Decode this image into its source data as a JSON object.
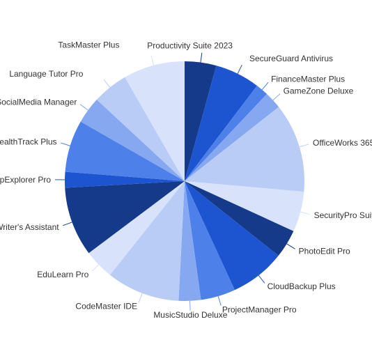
{
  "chart_data": {
    "type": "pie",
    "title": "",
    "start_angle_deg": 0,
    "direction": "clockwise",
    "labels_outside": true,
    "categories": [
      "Productivity Suite 2023",
      "SecureGuard Antivirus",
      "FinanceMaster Plus",
      "GameZone Deluxe",
      "OfficeWorks 365",
      "SecurityPro Suite",
      "PhotoEdit Pro",
      "CloudBackup Plus",
      "ProjectManager Pro",
      "MusicStudio Deluxe",
      "CodeMaster IDE",
      "EduLearn Pro",
      "Writer's Assistant",
      "MapExplorer Pro",
      "HealthTrack Plus",
      "SocialMedia Manager",
      "Language Tutor Pro",
      "TaskMaster Plus"
    ],
    "values": [
      4.0,
      5.7,
      1.6,
      2.2,
      11.3,
      5.1,
      3.6,
      7.0,
      4.4,
      2.8,
      9.3,
      3.8,
      8.8,
      2.0,
      6.6,
      3.4,
      4.5,
      7.8
    ],
    "colors": [
      "#153a8a",
      "#1d55d0",
      "#4d80e8",
      "#86a8f0",
      "#b8ccf6",
      "#d8e3fb",
      "#153a8a",
      "#1d55d0",
      "#4d80e8",
      "#86a8f0",
      "#b8ccf6",
      "#d8e3fb",
      "#153a8a",
      "#1d55d0",
      "#4d80e8",
      "#86a8f0",
      "#b8ccf6",
      "#d8e3fb"
    ]
  }
}
